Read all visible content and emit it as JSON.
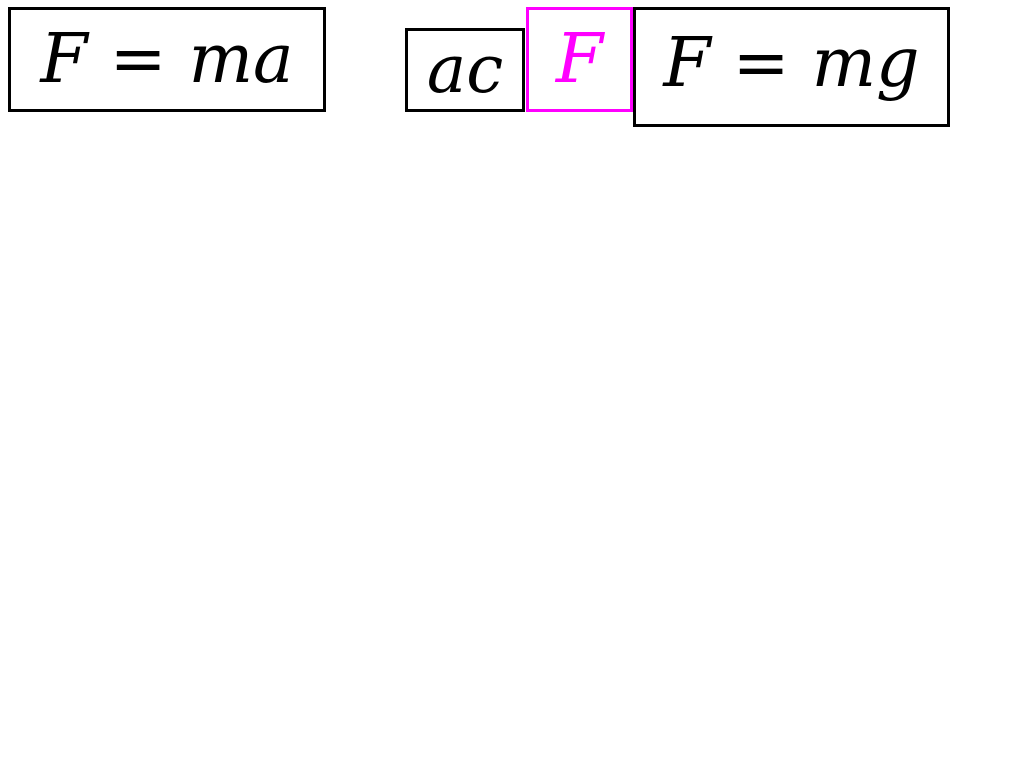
{
  "equations": {
    "first": {
      "lhs": "F",
      "op": "=",
      "rhs": "ma"
    },
    "fragment_ac": "ac",
    "highlighted": "F",
    "second": {
      "lhs": "F",
      "op": "=",
      "rhs": "mg"
    }
  },
  "colors": {
    "box_border": "#000000",
    "highlight": "#ff00ff"
  }
}
